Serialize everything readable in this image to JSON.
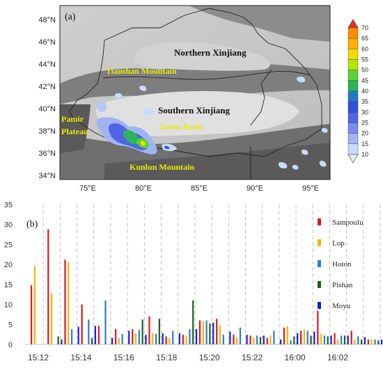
{
  "map": {
    "panel_label": "(a)",
    "lat_labels": [
      "48°N",
      "46°N",
      "44°N",
      "42°N",
      "40°N",
      "38°N",
      "36°N",
      "34°N"
    ],
    "lon_labels": [
      "75°E",
      "80°E",
      "85°E",
      "90°E",
      "95°E"
    ],
    "region_labels": {
      "northern": "Northern Xinjiang",
      "southern": "Southern Xinjiang",
      "tianshan": "Tianshan Mountain",
      "tarim": "Tarim Basin",
      "kunlun": "Kunlun Mountain",
      "pamir_1": "Pamir",
      "pamir_2": "Plateau"
    },
    "colorbar": {
      "levels": [
        "70",
        "65",
        "60",
        "55",
        "50",
        "45",
        "40",
        "35",
        "30",
        "25",
        "20",
        "15",
        "10"
      ],
      "colors": [
        "#e8321e",
        "#ff8c00",
        "#ffb000",
        "#f5dc00",
        "#b4e600",
        "#5ad232",
        "#2db45a",
        "#1e78c8",
        "#3250dc",
        "#5064e6",
        "#788cf0",
        "#a0b4f5",
        "#c8dcfa",
        "#e6eefc"
      ]
    }
  },
  "chart_data": {
    "type": "bar",
    "panel_label": "(b)",
    "ylim": [
      0,
      35
    ],
    "yticks": [
      "0",
      "5",
      "10",
      "15",
      "20",
      "25",
      "30",
      "35"
    ],
    "xtick_labels": [
      "15:12",
      "15:14",
      "15:16",
      "15:18",
      "15:20",
      "15:22",
      "16:00",
      "16:02"
    ],
    "series": [
      {
        "name": "Sampoulu",
        "color": "#e0161e"
      },
      {
        "name": "Lop",
        "color": "#f7b500"
      },
      {
        "name": "Hoton",
        "color": "#2a7fc4"
      },
      {
        "name": "Pishan",
        "color": "#1e5e1e"
      },
      {
        "name": "Moyu",
        "color": "#1020d8"
      }
    ],
    "groups": [
      {
        "s": [
          14.8,
          19.6,
          0,
          0,
          0
        ]
      },
      {
        "s": [
          28.8,
          12.8,
          0,
          2.0,
          1.2
        ]
      },
      {
        "s": [
          21.2,
          20.6,
          3.8,
          0,
          4.4
        ]
      },
      {
        "s": [
          10.0,
          0,
          6.2,
          1.6,
          4.6
        ]
      },
      {
        "s": [
          4.6,
          0,
          11.0,
          0,
          1.6
        ]
      },
      {
        "s": [
          3.8,
          1.6,
          2.6,
          0,
          3.4
        ]
      },
      {
        "s": [
          3.8,
          2.8,
          3.6,
          6.2,
          2.4
        ]
      },
      {
        "s": [
          7.0,
          2.8,
          2.6,
          6.4,
          2.8
        ]
      },
      {
        "s": [
          2.0,
          1.6,
          3.4,
          0,
          2.8
        ]
      },
      {
        "s": [
          2.4,
          2.2,
          3.8,
          11.0,
          3.8
        ]
      },
      {
        "s": [
          6.0,
          5.8,
          6.0,
          5.2,
          5.4
        ]
      },
      {
        "s": [
          6.4,
          4.8,
          2.4,
          0,
          3.2
        ]
      },
      {
        "s": [
          2.4,
          1.8,
          4.2,
          0,
          2.4
        ]
      },
      {
        "s": [
          2.2,
          1.8,
          2.2,
          1.8,
          2.2
        ]
      },
      {
        "s": [
          1.6,
          2.2,
          3.4,
          0,
          1.2
        ]
      },
      {
        "s": [
          4.2,
          4.6,
          1.0,
          2.0,
          2.8
        ]
      },
      {
        "s": [
          3.4,
          3.8,
          3.4,
          2.2,
          3.2
        ]
      },
      {
        "s": [
          8.4,
          2.6,
          2.2,
          2.0,
          2.2
        ]
      },
      {
        "s": [
          2.8,
          1.2,
          2.2,
          2.2,
          2.2
        ]
      },
      {
        "s": [
          3.4,
          1.2,
          2.0,
          1.2,
          1.8
        ]
      },
      {
        "s": [
          1.2,
          1.2,
          1.2,
          1.0,
          1.2
        ]
      }
    ]
  }
}
